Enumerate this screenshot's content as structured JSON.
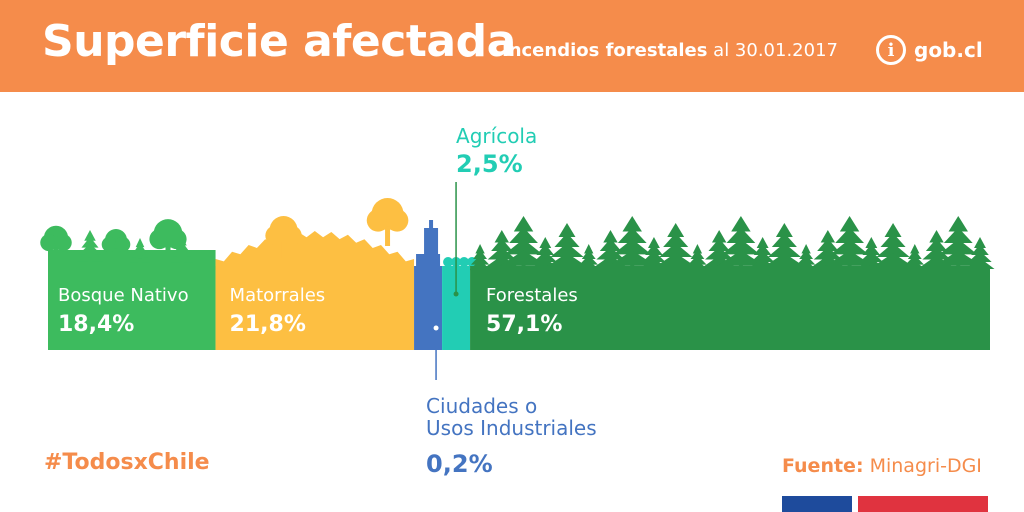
{
  "header": {
    "title": "Superficie afectada",
    "subtitle_bold": "Incendios forestales",
    "subtitle_rest": " al 30.01.2017",
    "logo_text": "gob.cl",
    "logo_icon": "info-icon"
  },
  "footer": {
    "hashtag": "#TodosxChile",
    "source_label": "Fuente:",
    "source_value": " Minagri-DGI"
  },
  "colors": {
    "header": "#F58C4B",
    "bosque_nativo": "#3DBB5E",
    "matorrales": "#FDBF42",
    "ciudades": "#4474C1",
    "agricola": "#22CDB4",
    "forestales": "#2A9248",
    "flag_blue": "#1E4B9C",
    "flag_red": "#E0333F"
  },
  "chart_data": {
    "type": "bar",
    "title": "Superficie afectada",
    "subtitle": "Incendios forestales al 30.01.2017",
    "stacked": true,
    "unit": "%",
    "categories": [
      "Bosque Nativo",
      "Matorrales",
      "Ciudades o Usos Industriales",
      "Agrícola",
      "Forestales"
    ],
    "values": [
      18.4,
      21.8,
      0.2,
      2.5,
      57.1
    ],
    "value_labels": [
      "18,4%",
      "21,8%",
      "0,2%",
      "2,5%",
      "57,1%"
    ],
    "label_lines": [
      [
        "Bosque Nativo"
      ],
      [
        "Matorrales"
      ],
      [
        "Ciudades o",
        "Usos Industriales"
      ],
      [
        "Agrícola"
      ],
      [
        "Forestales"
      ]
    ]
  }
}
